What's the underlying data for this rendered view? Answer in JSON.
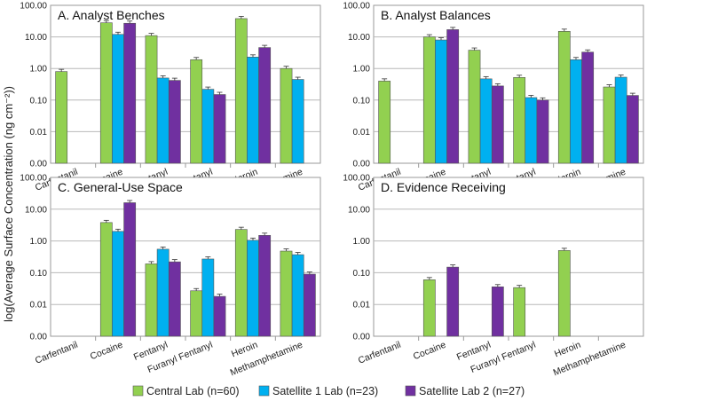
{
  "chart_data": {
    "type": "bar",
    "ylabel": "log(Average Surface Concentration (ng cm⁻²))",
    "yscale": "log",
    "ylim": [
      0.001,
      100
    ],
    "yticks": [
      0.001,
      0.01,
      0.1,
      1,
      10,
      100
    ],
    "ytick_labels": [
      "0.00",
      "0.01",
      "0.10",
      "1.00",
      "10.00",
      "100.00"
    ],
    "categories": [
      "Carfentanil",
      "Cocaine",
      "Fentanyl",
      "Furanyl Fentanyl",
      "Heroin",
      "Methamphetamine"
    ],
    "series_names": [
      "Central Lab (n=60)",
      "Satellite 1 Lab (n=23)",
      "Satellite Lab 2 (n=27)"
    ],
    "colors": [
      "#92d050",
      "#00b0f0",
      "#7030a0"
    ],
    "legend_position": "bottom",
    "panels": [
      {
        "title": "A. Analyst Benches",
        "series": [
          {
            "name": "Central Lab (n=60)",
            "values": [
              0.8,
              28,
              11,
              1.9,
              38,
              1.0
            ]
          },
          {
            "name": "Satellite 1 Lab (n=23)",
            "values": [
              null,
              12,
              0.5,
              0.22,
              2.3,
              0.45
            ]
          },
          {
            "name": "Satellite Lab 2 (n=27)",
            "values": [
              null,
              27,
              0.42,
              0.15,
              4.6,
              null
            ]
          }
        ]
      },
      {
        "title": "B. Analyst Balances",
        "series": [
          {
            "name": "Central Lab (n=60)",
            "values": [
              0.4,
              10,
              3.8,
              0.52,
              15,
              0.26
            ]
          },
          {
            "name": "Satellite 1 Lab (n=23)",
            "values": [
              null,
              8,
              0.47,
              0.12,
              1.9,
              0.53
            ]
          },
          {
            "name": "Satellite Lab 2 (n=27)",
            "values": [
              null,
              17,
              0.28,
              0.1,
              3.3,
              0.14
            ]
          }
        ]
      },
      {
        "title": "C. General-Use Space",
        "series": [
          {
            "name": "Central Lab (n=60)",
            "values": [
              null,
              3.8,
              0.19,
              0.027,
              2.3,
              0.48
            ]
          },
          {
            "name": "Satellite 1 Lab (n=23)",
            "values": [
              null,
              2.0,
              0.55,
              0.27,
              1.05,
              0.37
            ]
          },
          {
            "name": "Satellite Lab 2 (n=27)",
            "values": [
              null,
              16,
              0.22,
              0.018,
              1.5,
              0.09
            ]
          }
        ]
      },
      {
        "title": "D. Evidence Receiving",
        "series": [
          {
            "name": "Central Lab (n=60)",
            "values": [
              null,
              0.06,
              null,
              0.034,
              0.5,
              null
            ]
          },
          {
            "name": "Satellite 1 Lab (n=23)",
            "values": [
              null,
              null,
              null,
              null,
              null,
              null
            ]
          },
          {
            "name": "Satellite Lab 2 (n=27)",
            "values": [
              null,
              0.15,
              0.036,
              null,
              null,
              null
            ]
          }
        ]
      }
    ]
  }
}
